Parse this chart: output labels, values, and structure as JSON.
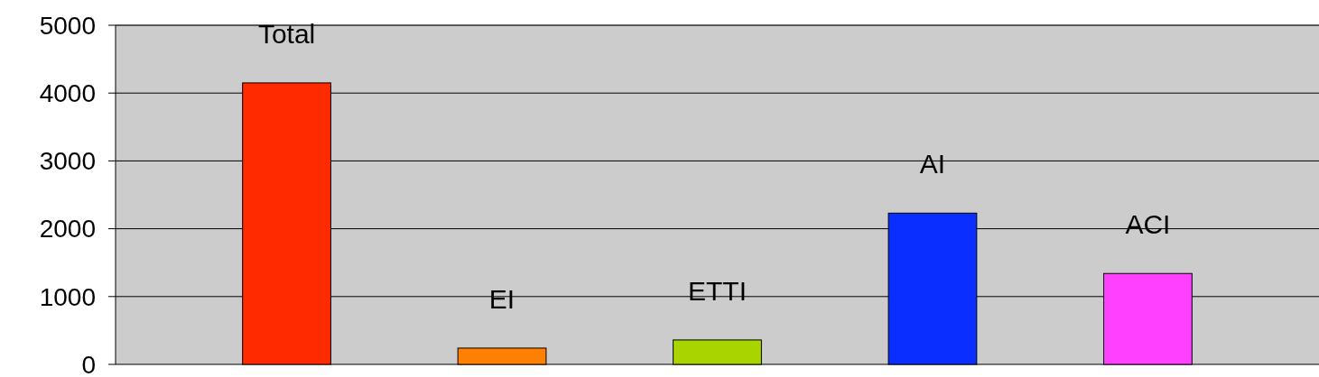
{
  "chart_data": {
    "type": "bar",
    "categories": [
      "Total",
      "EI",
      "ETTI",
      "AI",
      "ACI"
    ],
    "values": [
      4150,
      240,
      360,
      2230,
      1340
    ],
    "colors": [
      "#ff2a00",
      "#ff8000",
      "#aad400",
      "#0a2eff",
      "#ff40ff"
    ],
    "ylim": [
      0,
      5000
    ],
    "yticks": [
      0,
      1000,
      2000,
      3000,
      4000,
      5000
    ],
    "grid": "y"
  }
}
